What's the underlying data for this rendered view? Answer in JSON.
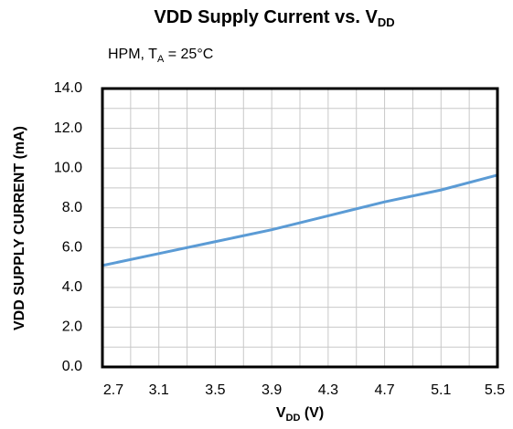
{
  "chart_data": {
    "type": "line",
    "title": {
      "text": "VDD Supply Current vs. V",
      "sub": "DD"
    },
    "subtitle": {
      "text": "HPM, T",
      "sub": "A",
      "rest": " = 25°C"
    },
    "xlabel": {
      "text": "V",
      "sub": "DD",
      "rest": " (V)"
    },
    "ylabel": "VDD SUPPLY CURRENT (mA)",
    "x": [
      2.7,
      3.1,
      3.5,
      3.9,
      4.3,
      4.7,
      5.1,
      5.5
    ],
    "series": [
      {
        "name": "VDD Supply Current",
        "color": "#5b9bd5",
        "values": [
          5.1,
          5.7,
          6.3,
          6.9,
          7.6,
          8.3,
          8.9,
          9.65
        ]
      }
    ],
    "xlim": [
      2.7,
      5.5
    ],
    "xticks": [
      2.7,
      3.1,
      3.5,
      3.9,
      4.3,
      4.7,
      5.1,
      5.5
    ],
    "xminor": [
      2.9,
      3.3,
      3.7,
      4.1,
      4.5,
      4.9,
      5.3
    ],
    "ylim": [
      0,
      14
    ],
    "yticks": [
      {
        "value": 0,
        "label": "0.0"
      },
      {
        "value": 2,
        "label": "2.0"
      },
      {
        "value": 4,
        "label": "4.0"
      },
      {
        "value": 6,
        "label": "6.0"
      },
      {
        "value": 8,
        "label": "8.0"
      },
      {
        "value": 10,
        "label": "10.0"
      },
      {
        "value": 12,
        "label": "12.0"
      },
      {
        "value": 14,
        "label": "14.0"
      }
    ],
    "yminor": [
      1,
      3,
      5,
      7,
      9,
      11,
      13
    ],
    "grid": true
  }
}
